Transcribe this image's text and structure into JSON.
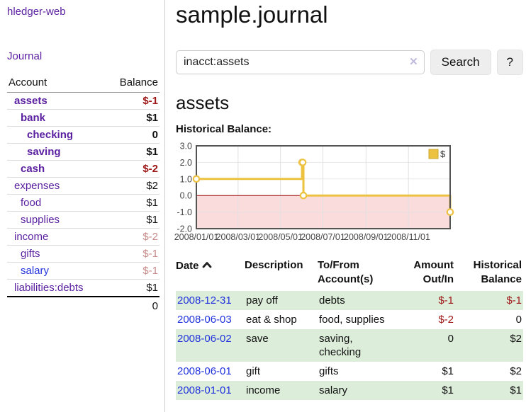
{
  "sidebar": {
    "app_title": "hledger-web",
    "journal_label": "Journal",
    "table_headers": {
      "account": "Account",
      "balance": "Balance"
    },
    "accounts": [
      {
        "name": "assets",
        "indent": 1,
        "bold": true,
        "color": "purple",
        "balance": "$-1",
        "balance_style": "neg-strong"
      },
      {
        "name": "bank",
        "indent": 2,
        "bold": true,
        "color": "purple",
        "balance": "$1",
        "balance_style": "pos"
      },
      {
        "name": "checking",
        "indent": 3,
        "bold": true,
        "color": "purple",
        "balance": "0",
        "balance_style": "pos"
      },
      {
        "name": "saving",
        "indent": 3,
        "bold": true,
        "color": "purple",
        "balance": "$1",
        "balance_style": "pos"
      },
      {
        "name": "cash",
        "indent": 2,
        "bold": true,
        "color": "purple",
        "balance": "$-2",
        "balance_style": "neg-strong"
      },
      {
        "name": "expenses",
        "indent": 1,
        "bold": false,
        "color": "purple",
        "balance": "$2",
        "balance_style": "pos"
      },
      {
        "name": "food",
        "indent": 2,
        "bold": false,
        "color": "purple",
        "balance": "$1",
        "balance_style": "pos"
      },
      {
        "name": "supplies",
        "indent": 2,
        "bold": false,
        "color": "purple",
        "balance": "$1",
        "balance_style": "pos"
      },
      {
        "name": "income",
        "indent": 1,
        "bold": false,
        "color": "purple",
        "balance": "$-2",
        "balance_style": "neg-light"
      },
      {
        "name": "gifts",
        "indent": 2,
        "bold": false,
        "color": "purple",
        "balance": "$-1",
        "balance_style": "neg-light"
      },
      {
        "name": "salary",
        "indent": 2,
        "bold": false,
        "color": "blue",
        "balance": "$-1",
        "balance_style": "neg-light"
      },
      {
        "name": "liabilities:debts",
        "indent": 1,
        "bold": false,
        "color": "purple",
        "balance": "$1",
        "balance_style": "pos"
      }
    ],
    "total": "0"
  },
  "header": {
    "title": "sample.journal"
  },
  "search": {
    "value": "inacct:assets",
    "clear_label": "✕",
    "button_label": "Search",
    "help_label": "?"
  },
  "main": {
    "account_heading": "assets",
    "chart_title": "Historical Balance:"
  },
  "chart_data": {
    "type": "line",
    "mode": "steps",
    "title": "Historical Balance:",
    "series": [
      {
        "name": "$",
        "color": "#edc240",
        "points": [
          [
            "2008-01-01",
            1
          ],
          [
            "2008-06-01",
            2
          ],
          [
            "2008-06-02",
            2
          ],
          [
            "2008-06-03",
            0
          ],
          [
            "2008-12-31",
            -1
          ]
        ]
      }
    ],
    "ylim": [
      -2,
      3
    ],
    "yticks": [
      3,
      2,
      1,
      0,
      -1,
      -2
    ],
    "xticks": [
      "2008/01/01",
      "2008/03/01",
      "2008/05/01",
      "2008/07/01",
      "2008/09/01",
      "2008/11/01"
    ],
    "grid": true,
    "legend_position": "top-right",
    "negative_region_fill": "#fbdcdc",
    "zero_line_color": "#a00000",
    "border_color": "#545454"
  },
  "register": {
    "headers": {
      "date": "Date",
      "description": "Description",
      "accounts": "To/From Account(s)",
      "amount": "Amount Out/In",
      "balance": "Historical Balance"
    },
    "rows": [
      {
        "date": "2008-12-31",
        "description": "pay off",
        "accounts": "debts",
        "amount": "$-1",
        "amount_style": "neg-strong",
        "balance": "$-1",
        "balance_style": "neg-strong",
        "shaded": true
      },
      {
        "date": "2008-06-03",
        "description": "eat & shop",
        "accounts": "food, supplies",
        "amount": "$-2",
        "amount_style": "neg-strong",
        "balance": "0",
        "balance_style": "pos",
        "shaded": false
      },
      {
        "date": "2008-06-02",
        "description": "save",
        "accounts": "saving, checking",
        "amount": "0",
        "amount_style": "pos",
        "balance": "$2",
        "balance_style": "pos",
        "shaded": true
      },
      {
        "date": "2008-06-01",
        "description": "gift",
        "accounts": "gifts",
        "amount": "$1",
        "amount_style": "pos",
        "balance": "$2",
        "balance_style": "pos",
        "shaded": false
      },
      {
        "date": "2008-01-01",
        "description": "income",
        "accounts": "salary",
        "amount": "$1",
        "amount_style": "pos",
        "balance": "$1",
        "balance_style": "pos",
        "shaded": true
      }
    ]
  }
}
